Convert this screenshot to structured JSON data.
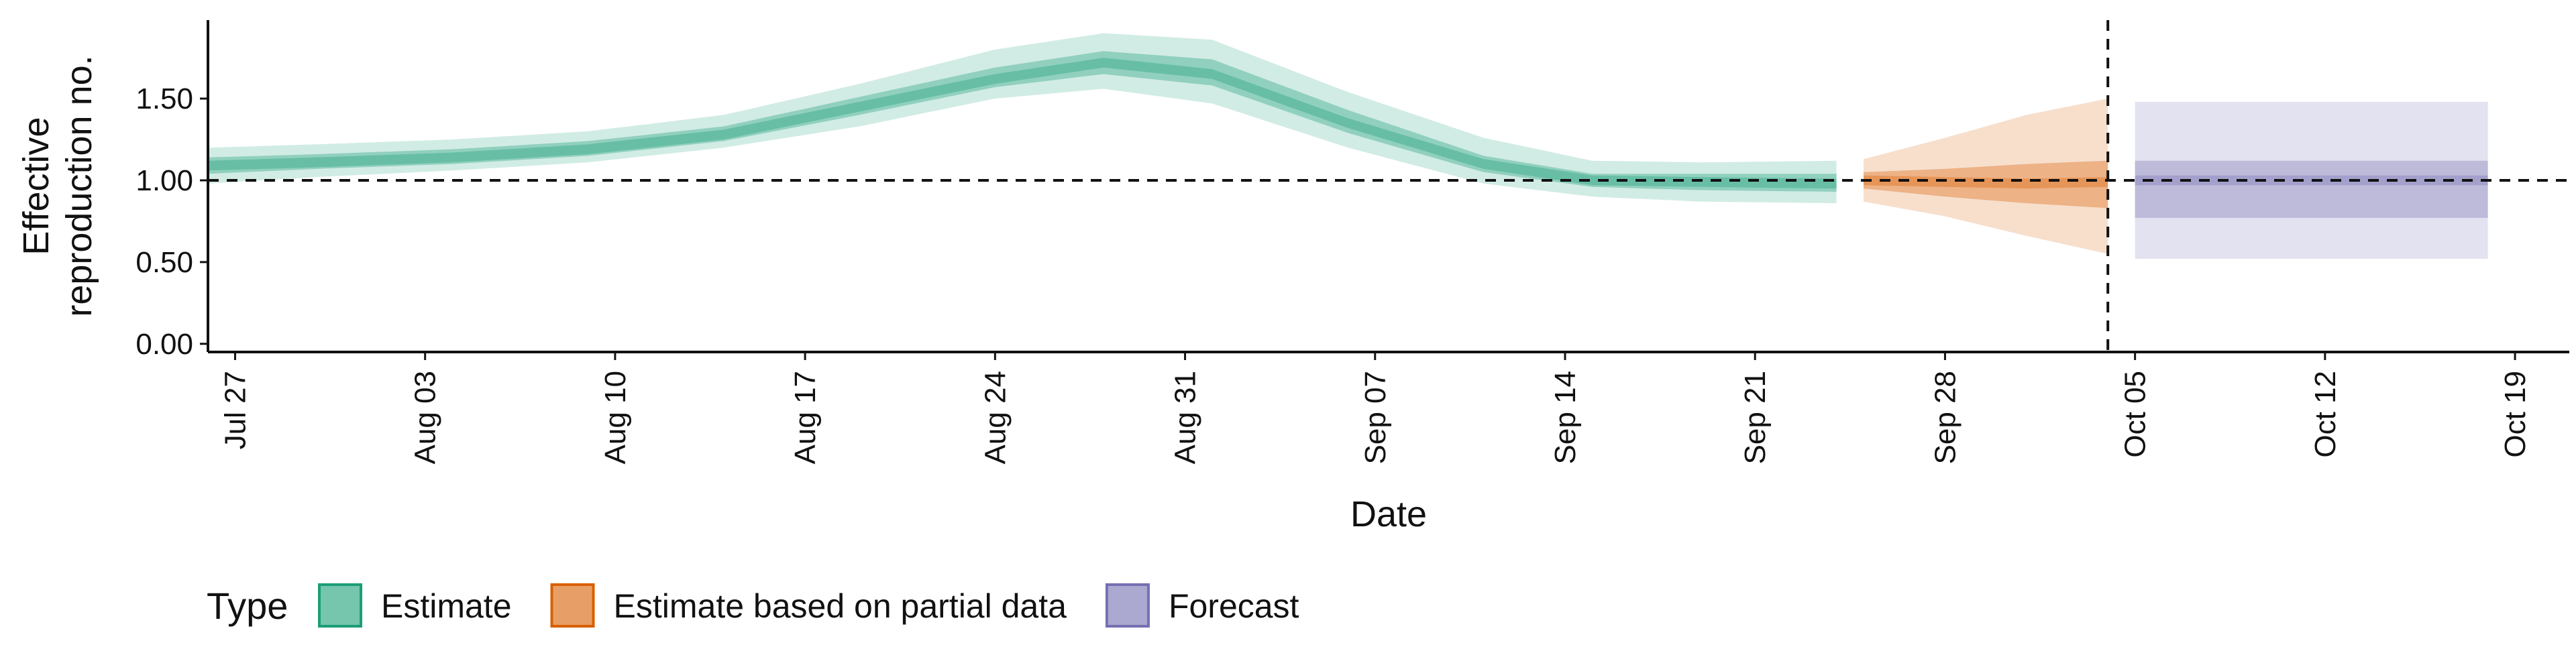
{
  "chart_data": {
    "type": "area",
    "xlabel": "Date",
    "ylabel_lines": [
      "Effective",
      "reproduction no."
    ],
    "x_range": [
      "2020-07-26",
      "2020-10-21"
    ],
    "ylim": [
      -0.05,
      1.98
    ],
    "y_ticks": [
      0.0,
      0.5,
      1.0,
      1.5
    ],
    "y_tick_labels": [
      "0.00",
      "0.50",
      "1.00",
      "1.50"
    ],
    "x_ticks": [
      "2020-07-27",
      "2020-08-03",
      "2020-08-10",
      "2020-08-17",
      "2020-08-24",
      "2020-08-31",
      "2020-09-07",
      "2020-09-14",
      "2020-09-21",
      "2020-09-28",
      "2020-10-05",
      "2020-10-12",
      "2020-10-19"
    ],
    "x_tick_labels": [
      "Jul 27",
      "Aug 03",
      "Aug 10",
      "Aug 17",
      "Aug 24",
      "Aug 31",
      "Sep 07",
      "Sep 14",
      "Sep 21",
      "Sep 28",
      "Oct 05",
      "Oct 12",
      "Oct 19"
    ],
    "reference_lines": {
      "horizontal_y": 1.0,
      "vertical_x": "2020-10-04"
    },
    "grid": false,
    "legend": {
      "title": "Type",
      "position": "bottom",
      "entries": [
        "Estimate",
        "Estimate based on partial data",
        "Forecast"
      ]
    },
    "series": [
      {
        "name": "Estimate",
        "fill": "#1b9e77",
        "border": "#1b9e77",
        "x": [
          "2020-07-26",
          "2020-07-30",
          "2020-08-04",
          "2020-08-09",
          "2020-08-14",
          "2020-08-19",
          "2020-08-24",
          "2020-08-28",
          "2020-09-01",
          "2020-09-06",
          "2020-09-11",
          "2020-09-15",
          "2020-09-19",
          "2020-09-24"
        ],
        "median": [
          1.09,
          1.11,
          1.14,
          1.19,
          1.28,
          1.45,
          1.62,
          1.72,
          1.65,
          1.35,
          1.1,
          1.0,
          0.99,
          0.98
        ],
        "lower_90": [
          0.98,
          1.02,
          1.06,
          1.11,
          1.2,
          1.33,
          1.5,
          1.56,
          1.47,
          1.2,
          0.98,
          0.9,
          0.87,
          0.86
        ],
        "upper_90": [
          1.2,
          1.22,
          1.25,
          1.3,
          1.4,
          1.59,
          1.8,
          1.9,
          1.86,
          1.54,
          1.26,
          1.12,
          1.11,
          1.12
        ],
        "lower_50": [
          1.04,
          1.07,
          1.1,
          1.15,
          1.24,
          1.4,
          1.57,
          1.65,
          1.58,
          1.29,
          1.05,
          0.96,
          0.94,
          0.93
        ],
        "upper_50": [
          1.14,
          1.16,
          1.19,
          1.24,
          1.33,
          1.51,
          1.69,
          1.79,
          1.74,
          1.43,
          1.15,
          1.04,
          1.04,
          1.04
        ]
      },
      {
        "name": "Estimate based on partial data",
        "fill": "#d95f02",
        "border": "#d95f02",
        "x": [
          "2020-09-25",
          "2020-09-28",
          "2020-10-01",
          "2020-10-04"
        ],
        "median": [
          1.0,
          0.99,
          0.98,
          0.99
        ],
        "lower_90": [
          0.87,
          0.78,
          0.66,
          0.55
        ],
        "upper_90": [
          1.13,
          1.26,
          1.4,
          1.5
        ],
        "lower_50": [
          0.95,
          0.9,
          0.86,
          0.83
        ],
        "upper_50": [
          1.05,
          1.07,
          1.1,
          1.12
        ]
      },
      {
        "name": "Forecast",
        "fill": "#7570b3",
        "border": "#7570b3",
        "x": [
          "2020-10-05",
          "2020-10-18"
        ],
        "median": [
          1.0,
          1.0
        ],
        "lower_90": [
          0.52,
          0.52
        ],
        "upper_90": [
          1.48,
          1.48
        ],
        "lower_50": [
          0.77,
          0.77
        ],
        "upper_50": [
          1.12,
          1.12
        ]
      }
    ]
  }
}
